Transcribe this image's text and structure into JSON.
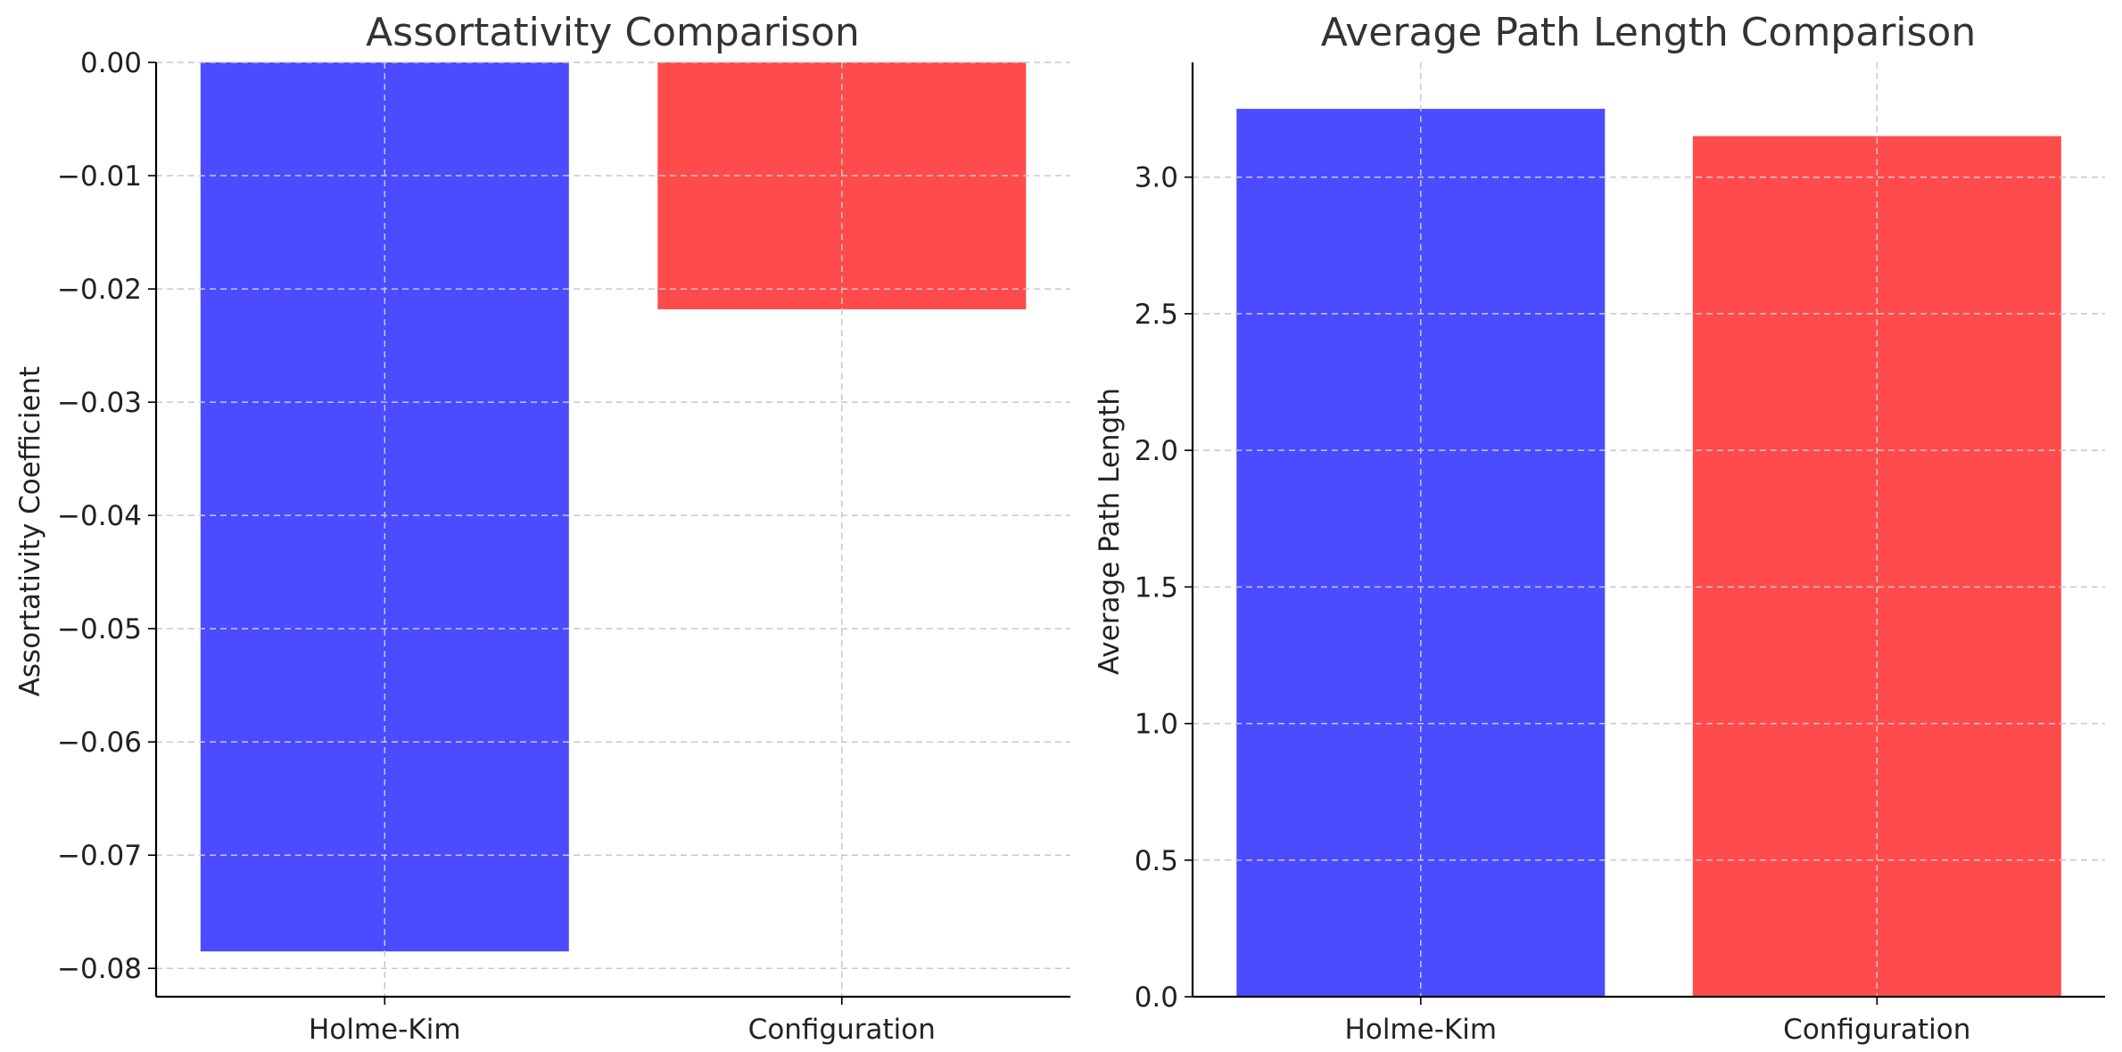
{
  "chart_data": [
    {
      "type": "bar",
      "title": "Assortativity Comparison",
      "xlabel": "",
      "ylabel": "Assortativity Coefficient",
      "categories": [
        "Holme-Kim",
        "Configuration"
      ],
      "values": [
        -0.0785,
        -0.0218
      ],
      "ylim": [
        -0.0825,
        0.0
      ],
      "yticks": [
        0.0,
        -0.01,
        -0.02,
        -0.03,
        -0.04,
        -0.05,
        -0.06,
        -0.07,
        -0.08
      ],
      "ytick_labels": [
        "0.00",
        "−0.01",
        "−0.02",
        "−0.03",
        "−0.04",
        "−0.05",
        "−0.06",
        "−0.07",
        "−0.08"
      ],
      "colors": [
        "#4b4bff",
        "#ff4b4b"
      ],
      "grid": true,
      "legend": "none"
    },
    {
      "type": "bar",
      "title": "Average Path Length Comparison",
      "xlabel": "",
      "ylabel": "Average Path Length",
      "categories": [
        "Holme-Kim",
        "Configuration"
      ],
      "values": [
        3.25,
        3.15
      ],
      "ylim": [
        0.0,
        3.42
      ],
      "yticks": [
        0.0,
        0.5,
        1.0,
        1.5,
        2.0,
        2.5,
        3.0
      ],
      "ytick_labels": [
        "0.0",
        "0.5",
        "1.0",
        "1.5",
        "2.0",
        "2.5",
        "3.0"
      ],
      "colors": [
        "#4b4bff",
        "#ff4b4b"
      ],
      "grid": true,
      "legend": "none"
    }
  ]
}
